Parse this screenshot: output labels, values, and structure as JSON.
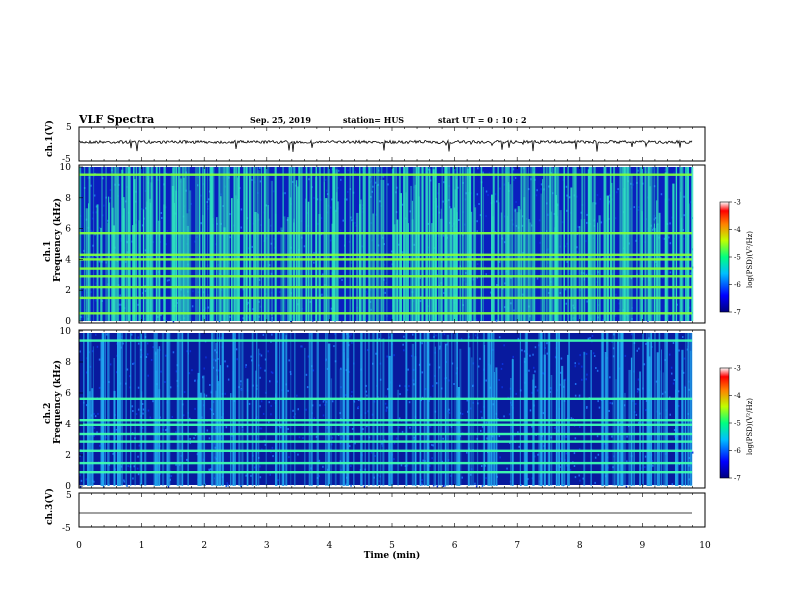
{
  "header": {
    "title": "VLF Spectra",
    "date": "Sep. 25, 2019",
    "station": "station= HUS",
    "start": "start  UT =   0 : 10 : 2"
  },
  "chart_data": {
    "type": "heatmap",
    "x": {
      "label": "Time (min)",
      "range": [
        0,
        10
      ],
      "ticks": [
        "0",
        "1",
        "2",
        "3",
        "4",
        "5",
        "6",
        "7",
        "8",
        "9",
        "10"
      ]
    },
    "panels": [
      {
        "id": "ch1-waveform",
        "type": "line",
        "ylabel": "ch.1(V)",
        "ylim": [
          -5,
          5
        ],
        "yticks": [
          "5",
          "-5"
        ],
        "baseline": 0
      },
      {
        "id": "ch1-spectrogram",
        "type": "heatmap",
        "ylabel_1": "ch.1",
        "ylabel_2": "Frequency (kHz)",
        "ylim": [
          0,
          10
        ],
        "yticks": [
          "0",
          "2",
          "4",
          "6",
          "8",
          "10"
        ],
        "bands_khz": [
          0.5,
          1.5,
          2.2,
          2.9,
          3.4,
          4.0,
          4.3,
          5.7,
          9.5
        ],
        "colorbar": {
          "label": "log(PSD)(V²/Hz)",
          "ticks": [
            "-3",
            "-4",
            "-5",
            "-6",
            "-7"
          ],
          "range": [
            -7,
            -3
          ]
        }
      },
      {
        "id": "ch2-spectrogram",
        "type": "heatmap",
        "ylabel_1": "ch.2",
        "ylabel_2": "Frequency (kHz)",
        "ylim": [
          0,
          10
        ],
        "yticks": [
          "0",
          "2",
          "4",
          "6",
          "8",
          "10"
        ],
        "bands_khz": [
          0.9,
          1.5,
          2.3,
          2.9,
          3.4,
          4.0,
          4.3,
          5.7,
          9.5
        ],
        "colorbar": {
          "label": "log(PSD)(V²/Hz)",
          "ticks": [
            "-3",
            "-4",
            "-5",
            "-6",
            "-7"
          ],
          "range": [
            -7,
            -3
          ]
        }
      },
      {
        "id": "ch3-waveform",
        "type": "line",
        "ylabel": "ch.3(V)",
        "ylim": [
          -5,
          5
        ],
        "yticks": [
          "5",
          "-5"
        ],
        "baseline": 0
      }
    ]
  }
}
